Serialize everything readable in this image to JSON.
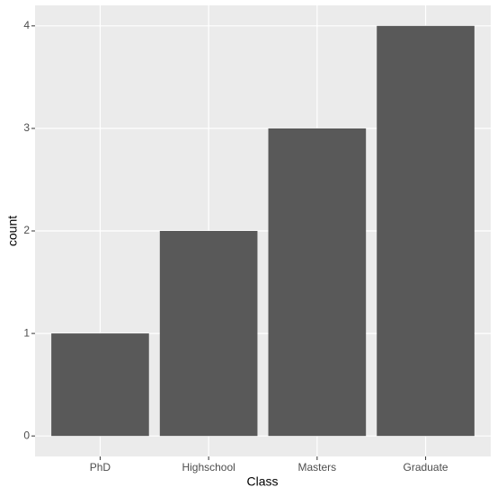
{
  "chart_data": {
    "type": "bar",
    "x_label": "Class",
    "y_label": "count",
    "categories": [
      "PhD",
      "Highschool",
      "Masters",
      "Graduate"
    ],
    "values": [
      1,
      2,
      3,
      4
    ],
    "color": "#595959",
    "ylim": [
      -0.2,
      4.2
    ],
    "yticks": [
      0,
      1,
      2,
      3,
      4
    ],
    "grid": true
  }
}
